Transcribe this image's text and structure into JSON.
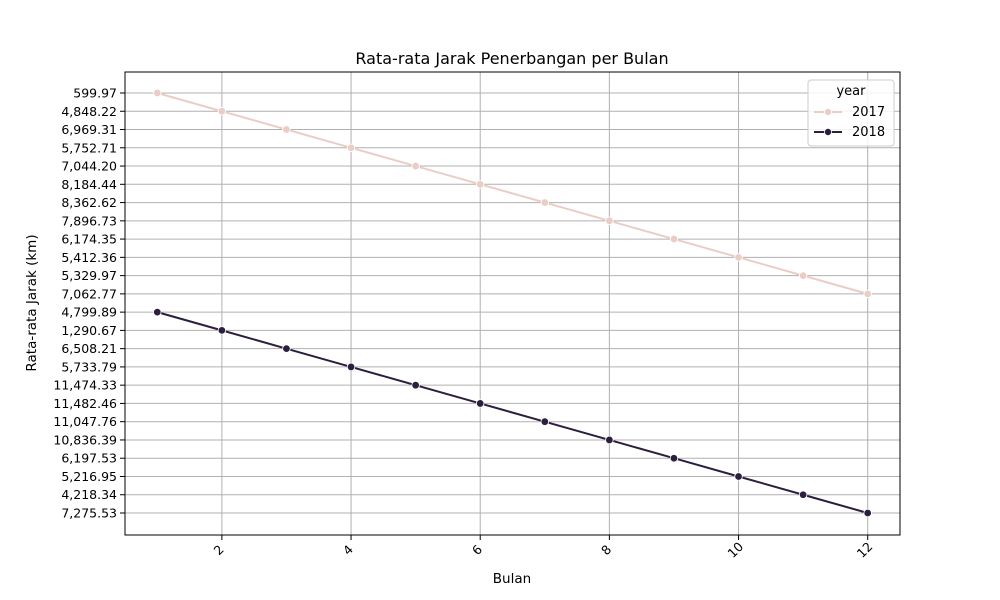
{
  "chart_data": {
    "type": "line",
    "title": "Rata-rata Jarak Penerbangan per Bulan",
    "xlabel": "Bulan",
    "ylabel": "Rata-rata Jarak (km)",
    "x": [
      1,
      2,
      3,
      4,
      5,
      6,
      7,
      8,
      9,
      10,
      11,
      12
    ],
    "x_ticks": [
      2,
      4,
      6,
      8,
      10,
      12
    ],
    "xlim": [
      0.5,
      12.5
    ],
    "y_axis_kind": "categorical",
    "y_categories": [
      "599.97",
      "4,848.22",
      "6,969.31",
      "5,752.71",
      "7,044.20",
      "8,184.44",
      "8,362.62",
      "7,896.73",
      "6,174.35",
      "5,412.36",
      "5,329.97",
      "7,062.77",
      "4,799.89",
      "1,290.67",
      "6,508.21",
      "5,733.79",
      "11,474.33",
      "11,482.46",
      "11,047.76",
      "10,836.39",
      "6,197.53",
      "5,216.95",
      "4,218.34",
      "7,275.53"
    ],
    "grid": true,
    "legend": {
      "title": "year",
      "placement": "top-right"
    },
    "series": [
      {
        "name": "2017",
        "color": "#EBCDC7",
        "values": [
          "599.97",
          "4,848.22",
          "6,969.31",
          "5,752.71",
          "7,044.20",
          "8,184.44",
          "8,362.62",
          "7,896.73",
          "6,174.35",
          "5,412.36",
          "5,329.97",
          "7,062.77"
        ]
      },
      {
        "name": "2018",
        "color": "#2B1F3D",
        "values": [
          "4,799.89",
          "1,290.67",
          "6,508.21",
          "5,733.79",
          "11,474.33",
          "11,482.46",
          "11,047.76",
          "10,836.39",
          "6,197.53",
          "5,216.95",
          "4,218.34",
          "7,275.53"
        ]
      }
    ]
  }
}
